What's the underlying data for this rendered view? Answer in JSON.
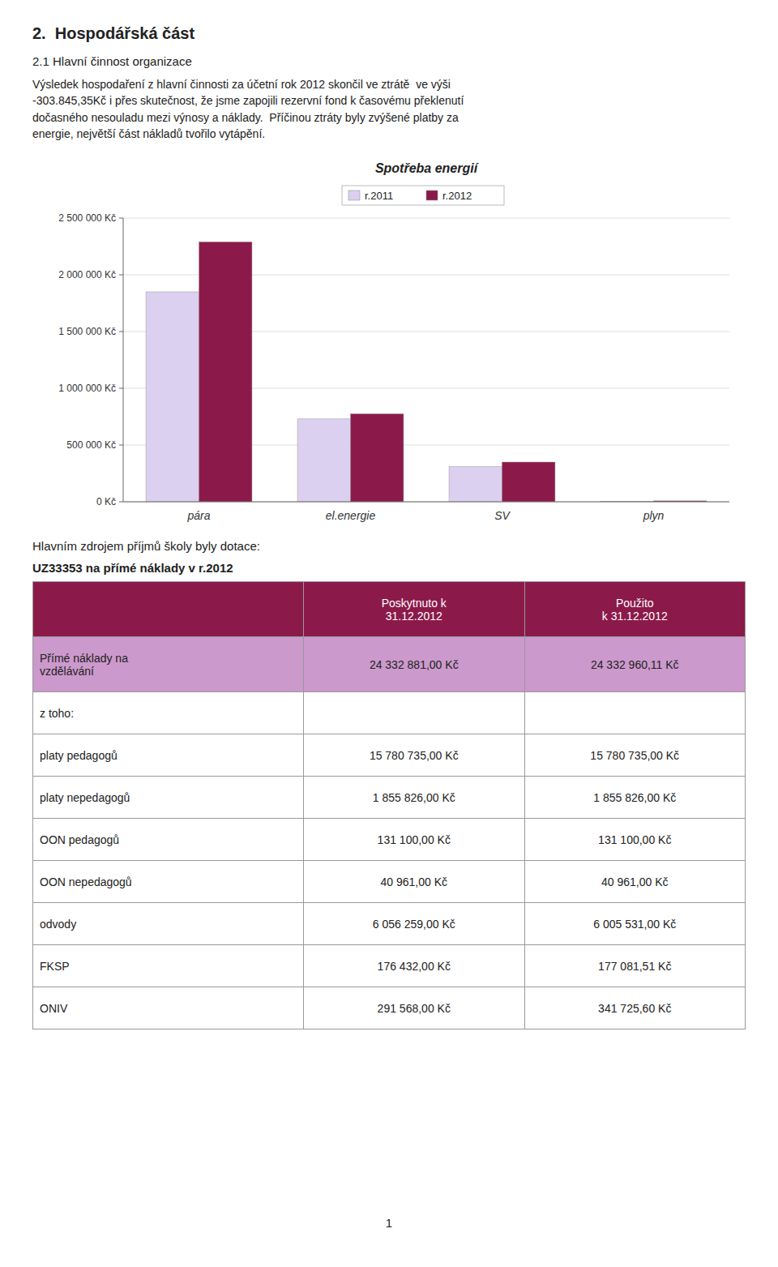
{
  "heading": "2.  Hospodářská část",
  "subheading": "2.1 Hlavní činnost organizace",
  "paragraph": "Výsledek hospodaření z hlavní činnosti za účetní rok 2012 skončil ve ztrátě  ve výši\n-303.845,35Kč i přes skutečnost, že jsme zapojili rezervní fond k časovému překlenutí\ndočasného nesouladu mezi výnosy a náklady.  Příčinou ztráty byly zvýšené platby za\nenergie, největší část nákladů tvořilo vytápění.",
  "chart_data": {
    "type": "bar",
    "title": "Spotřeba energií",
    "categories": [
      "pára",
      "el.energie",
      "SV",
      "plyn"
    ],
    "series": [
      {
        "name": "r.2011",
        "color": "#dcd0f0",
        "values": [
          1850000,
          730000,
          310000,
          5000
        ]
      },
      {
        "name": "r.2012",
        "color": "#8b1a4a",
        "values": [
          2290000,
          775000,
          350000,
          8000
        ]
      }
    ],
    "ylim": [
      0,
      2500000
    ],
    "yticks": [
      {
        "value": 0,
        "label": "0 Kč"
      },
      {
        "value": 500000,
        "label": "500 000 Kč"
      },
      {
        "value": 1000000,
        "label": "1 000 000 Kč"
      },
      {
        "value": 1500000,
        "label": "1 500 000 Kč"
      },
      {
        "value": 2000000,
        "label": "2 000 000 Kč"
      },
      {
        "value": 2500000,
        "label": "2 500 000 Kč"
      }
    ],
    "grid": true,
    "legend": "top"
  },
  "text_below_chart": "Hlavním zdrojem příjmů školy byly dotace:",
  "table": {
    "title": "UZ33353 na přímé náklady v r.2012",
    "header": [
      null,
      "Poskytnuto k\n31.12.2012",
      "Použito\nk 31.12.2012"
    ],
    "rows": [
      [
        "Přímé náklady na\nvzdělávání",
        "24 332 881,00 Kč",
        "24 332 960,11 Kč"
      ],
      [
        "z toho:",
        null,
        null
      ],
      [
        "platy pedagogů",
        "15 780 735,00 Kč",
        "15 780 735,00 Kč"
      ],
      [
        "platy nepedagogů",
        "1 855 826,00 Kč",
        "1 855 826,00 Kč"
      ],
      [
        "OON pedagogů",
        "131 100,00 Kč",
        "131 100,00 Kč"
      ],
      [
        "OON nepedagogů",
        "40 961,00 Kč",
        "40 961,00 Kč"
      ],
      [
        "odvody",
        "6 056 259,00 Kč",
        "6 005 531,00 Kč"
      ],
      [
        "FKSP",
        "176 432,00 Kč",
        "177 081,51 Kč"
      ],
      [
        "ONIV",
        "291 568,00 Kč",
        "341 725,60 Kč"
      ]
    ],
    "header_color": "#8b1a4a",
    "header_text_color": "#ffffff",
    "first_row_color": "#cc99cc"
  },
  "page_number": "1"
}
